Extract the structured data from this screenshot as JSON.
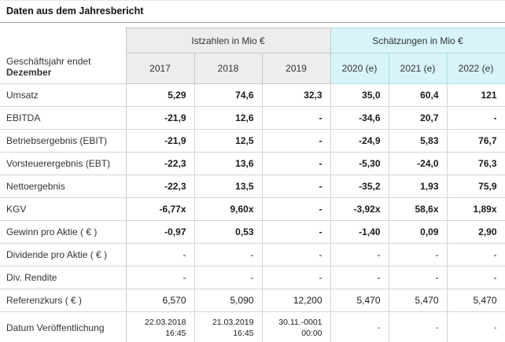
{
  "title": "Daten aus dem Jahresbericht",
  "colors": {
    "estimate_header_bg": "#d8f4f9",
    "estimate_header_border": "#a9dfe9",
    "actual_header_bg": "#ededed",
    "grid_border": "#d4d4d4",
    "title_rule": "#9a9a9a"
  },
  "table": {
    "corner": {
      "line1": "Geschäftsjahr endet",
      "line2": "Dezember"
    },
    "groups": [
      {
        "label": "Istzahlen in Mio €",
        "type": "actual",
        "span": 3
      },
      {
        "label": "Schätzungen in Mio €",
        "type": "estimate",
        "span": 3
      }
    ],
    "columns": [
      "2017",
      "2018",
      "2019",
      "2020 (e)",
      "2021 (e)",
      "2022 (e)"
    ],
    "rows": [
      {
        "label": "Umsatz",
        "bold": true,
        "small": false,
        "values": [
          "5,29",
          "74,6",
          "32,3",
          "35,0",
          "60,4",
          "121"
        ]
      },
      {
        "label": "EBITDA",
        "bold": true,
        "small": false,
        "values": [
          "-21,9",
          "12,6",
          "-",
          "-34,6",
          "20,7",
          "-"
        ]
      },
      {
        "label": "Betriebsergebnis (EBIT)",
        "bold": true,
        "small": false,
        "values": [
          "-21,9",
          "12,5",
          "-",
          "-24,9",
          "5,83",
          "76,7"
        ]
      },
      {
        "label": "Vorsteuerergebnis (EBT)",
        "bold": true,
        "small": false,
        "values": [
          "-22,3",
          "13,6",
          "-",
          "-5,30",
          "-24,0",
          "76,3"
        ]
      },
      {
        "label": "Nettoergebnis",
        "bold": true,
        "small": false,
        "values": [
          "-22,3",
          "13,5",
          "-",
          "-35,2",
          "1,93",
          "75,9"
        ]
      },
      {
        "label": "KGV",
        "bold": true,
        "small": false,
        "values": [
          "-6,77x",
          "9,60x",
          "-",
          "-3,92x",
          "58,6x",
          "1,89x"
        ]
      },
      {
        "label": "Gewinn pro Aktie ( € )",
        "bold": true,
        "small": false,
        "values": [
          "-0,97",
          "0,53",
          "-",
          "-1,40",
          "0,09",
          "2,90"
        ]
      },
      {
        "label": "Dividende pro Aktie ( € )",
        "bold": false,
        "small": false,
        "values": [
          "-",
          "-",
          "-",
          "-",
          "-",
          "-"
        ]
      },
      {
        "label": "Div. Rendite",
        "bold": false,
        "small": false,
        "values": [
          "-",
          "-",
          "-",
          "-",
          "-",
          "-"
        ]
      },
      {
        "label": "Referenzkurs ( € )",
        "bold": false,
        "small": false,
        "values": [
          "6,570",
          "5,090",
          "12,200",
          "5,470",
          "5,470",
          "5,470"
        ]
      },
      {
        "label": "Datum Veröffentlichung",
        "bold": false,
        "small": true,
        "values": [
          "22.03.2018\n16:45",
          "21.03.2019\n16:45",
          "30.11.-0001\n00:00",
          "-",
          "-",
          "-"
        ]
      }
    ]
  }
}
